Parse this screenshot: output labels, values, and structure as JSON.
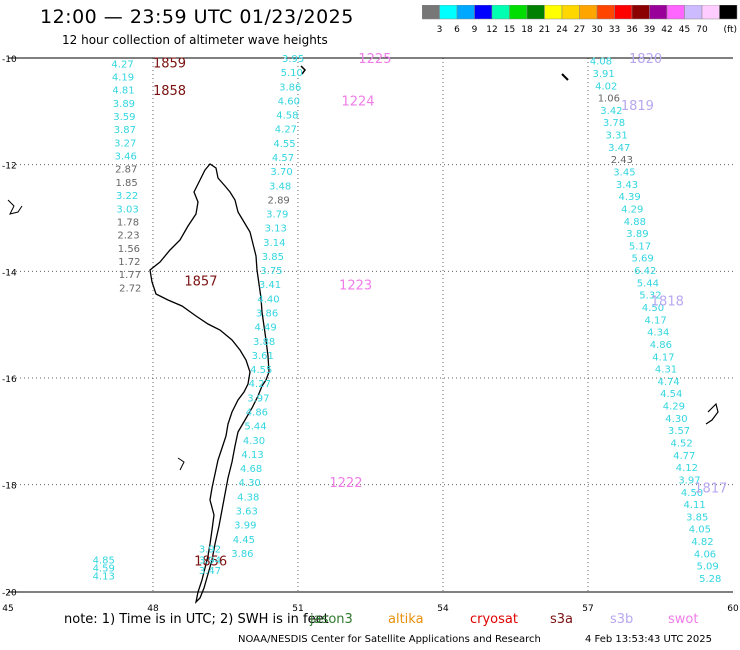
{
  "header": {
    "title": "12:00 — 23:59 UTC 01/23/2025",
    "subtitle": "12 hour collection of altimeter wave heights"
  },
  "legend": {
    "unit": "(ft)",
    "colors": [
      "#777777",
      "#00ffff",
      "#00a8ff",
      "#0000ff",
      "#00ffb0",
      "#00dd00",
      "#008000",
      "#ffff00",
      "#ffd700",
      "#ffa500",
      "#ff4500",
      "#ff0000",
      "#8b0000",
      "#990099",
      "#ff66ff",
      "#ccbbff",
      "#ffccff",
      "#000000"
    ],
    "ticks": [
      "3",
      "6",
      "9",
      "12",
      "15",
      "18",
      "21",
      "24",
      "27",
      "30",
      "33",
      "36",
      "39",
      "42",
      "45",
      "70"
    ]
  },
  "map": {
    "lat_labels": [
      "-10",
      "-12",
      "-14",
      "-16",
      "-18",
      "-20"
    ],
    "lon_labels": [
      "45",
      "48",
      "51",
      "54",
      "57",
      "60"
    ],
    "colors": {
      "cyan": "#33d6e0",
      "gray": "#666666",
      "jason": "#2d7a2d",
      "altika": "#e8900c",
      "cryosat": "#e00000",
      "s3a": "#7a1010",
      "s3b": "#b8a7f0",
      "swot": "#f07ce8"
    },
    "tracks": [
      {
        "id": "west",
        "color": "cyan",
        "time_color": "s3a",
        "lon0": 47.14,
        "lat0": -10.1,
        "lon1": 47.3,
        "lat1": -14.3,
        "values": [
          "4.27",
          "4.19",
          "4.81",
          "3.89",
          "3.59",
          "3.87",
          "3.27",
          "3.46",
          "2.87",
          "1.85",
          "3.22",
          "3.03",
          "1.78",
          "2.23",
          "1.56",
          "1.72",
          "1.77",
          "2.72"
        ],
        "gray": [
          8,
          9,
          12,
          13,
          14,
          15,
          16,
          17
        ],
        "times": [
          {
            "t": "1859",
            "lon": 48.0,
            "lat": -10.08
          },
          {
            "t": "1858",
            "lon": 48.0,
            "lat": -10.6
          },
          {
            "t": "1857",
            "lon": 48.65,
            "lat": -14.17
          }
        ]
      },
      {
        "id": "south",
        "color": "cyan",
        "time_color": "s3a",
        "lon0": 46.75,
        "lat0": -19.4,
        "lon1": 46.75,
        "lat1": -19.7,
        "values": [
          "4.85",
          "4.59",
          "4.13"
        ],
        "gray": [],
        "times": [
          {
            "t": "1856",
            "lon": 48.85,
            "lat": -19.42
          }
        ]
      },
      {
        "id": "south2",
        "color": "cyan",
        "time_color": "s3a",
        "lon0": 48.95,
        "lat0": -19.2,
        "lon1": 48.95,
        "lat1": -19.6,
        "values": [
          "3.92",
          "3.94",
          "3.47"
        ],
        "gray": [],
        "times": []
      },
      {
        "id": "central",
        "color": "cyan",
        "time_color": "swot",
        "lon0": 50.67,
        "lat0": -10.0,
        "lon1": 49.62,
        "lat1": -19.28,
        "values": [
          "3.95",
          "5.10",
          "3.86",
          "4.60",
          "4.58",
          "4.27",
          "4.55",
          "4.57",
          "3.70",
          "3.48",
          "2.89",
          "3.79",
          "3.13",
          "3.14",
          "3.85",
          "3.75",
          "3.41",
          "4.40",
          "3.86",
          "4.49",
          "3.88",
          "3.61",
          "4.55",
          "4.27",
          "3.97",
          "4.86",
          "5.44",
          "4.30",
          "4.13",
          "4.68",
          "4.30",
          "4.38",
          "3.63",
          "3.99",
          "4.45",
          "3.86"
        ],
        "gray": [
          10
        ],
        "times": [
          {
            "t": "1225",
            "lon": 52.25,
            "lat": -10.0
          },
          {
            "t": "1224",
            "lon": 51.9,
            "lat": -10.8
          },
          {
            "t": "1223",
            "lon": 51.85,
            "lat": -14.25
          },
          {
            "t": "1222",
            "lon": 51.65,
            "lat": -17.95
          }
        ]
      },
      {
        "id": "east",
        "color": "cyan",
        "time_color": "s3b",
        "lon0": 57.04,
        "lat0": -10.05,
        "lon1": 59.3,
        "lat1": -19.75,
        "values": [
          "4.08",
          "3.91",
          "4.02",
          "1.06",
          "3.42",
          "3.78",
          "3.31",
          "3.47",
          "2.43",
          "3.45",
          "3.43",
          "4.39",
          "4.29",
          "4.88",
          "3.89",
          "5.17",
          "5.69",
          "6.42",
          "5.44",
          "5.32",
          "4.50",
          "4.17",
          "4.34",
          "4.86",
          "4.17",
          "4.31",
          "4.74",
          "4.54",
          "4.29",
          "4.30",
          "3.57",
          "4.52",
          "4.77",
          "4.12",
          "3.97",
          "4.50",
          "4.11",
          "3.85",
          "4.05",
          "4.82",
          "4.06",
          "5.09",
          "5.28"
        ],
        "gray": [
          3,
          8
        ],
        "times": [
          {
            "t": "1820",
            "lon": 57.85,
            "lat": -10.0
          },
          {
            "t": "1819",
            "lon": 57.68,
            "lat": -10.88
          },
          {
            "t": "1818",
            "lon": 58.3,
            "lat": -14.55
          },
          {
            "t": "1817",
            "lon": 59.2,
            "lat": -18.05
          }
        ]
      }
    ]
  },
  "footer": {
    "note": "note: 1) Time is in UTC; 2) SWH is in feet",
    "satellites": [
      "jason3",
      "altika",
      "cryosat",
      "s3a",
      "s3b",
      "swot"
    ],
    "credit": "NOAA/NESDIS Center for Satellite Applications and Research",
    "stamp": "4 Feb 13:53:43 UTC 2025"
  }
}
